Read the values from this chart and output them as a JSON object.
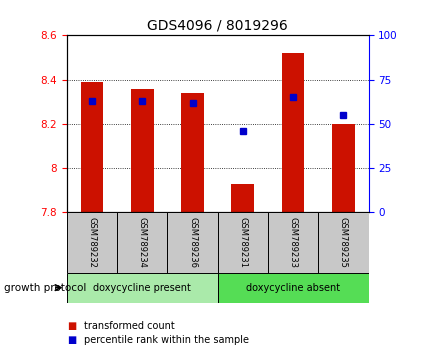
{
  "title": "GDS4096 / 8019296",
  "samples": [
    "GSM789232",
    "GSM789234",
    "GSM789236",
    "GSM789231",
    "GSM789233",
    "GSM789235"
  ],
  "bar_bottoms": [
    7.8,
    7.8,
    7.8,
    7.8,
    7.8,
    7.8
  ],
  "bar_tops": [
    8.39,
    8.36,
    8.34,
    7.93,
    8.52,
    8.2
  ],
  "percentile_right": [
    63,
    63,
    62,
    46,
    65,
    55
  ],
  "ylim_left": [
    7.8,
    8.6
  ],
  "ylim_right": [
    0,
    100
  ],
  "yticks_left": [
    7.8,
    8.0,
    8.2,
    8.4,
    8.6
  ],
  "yticks_right": [
    0,
    25,
    50,
    75,
    100
  ],
  "bar_color": "#cc1100",
  "dot_color": "#0000cc",
  "group1_label": "doxycycline present",
  "group2_label": "doxycycline absent",
  "group1_color": "#aaeaaa",
  "group2_color": "#55dd55",
  "group_label_prefix": "growth protocol",
  "legend_bar_label": "transformed count",
  "legend_dot_label": "percentile rank within the sample",
  "background_color": "#ffffff",
  "plot_bg_color": "#ffffff",
  "grid_color": "#000000",
  "group1_samples": 3,
  "group2_samples": 3,
  "title_fontsize": 10,
  "tick_fontsize": 7.5,
  "label_fontsize": 7.5,
  "legend_fontsize": 7.5
}
